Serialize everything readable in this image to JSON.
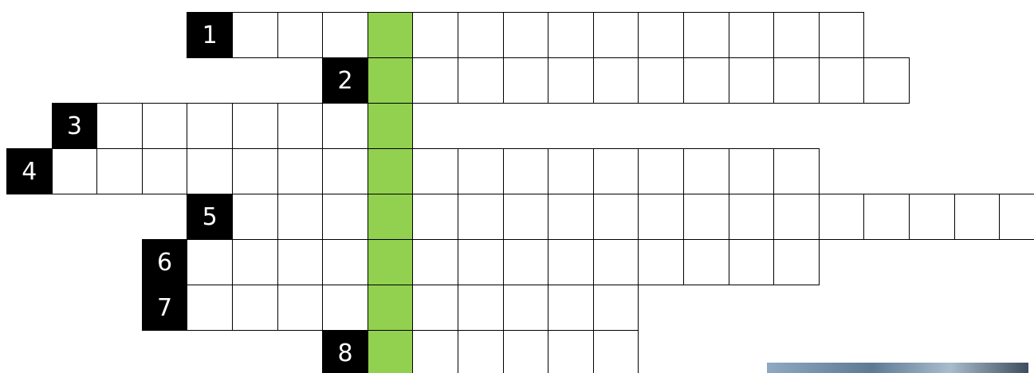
{
  "rows": [
    {
      "number": "1"
    },
    {
      "number": "2"
    },
    {
      "number": "3"
    },
    {
      "number": "4"
    },
    {
      "number": "5"
    },
    {
      "number": "6"
    },
    {
      "number": "7"
    },
    {
      "number": "8"
    }
  ]
}
